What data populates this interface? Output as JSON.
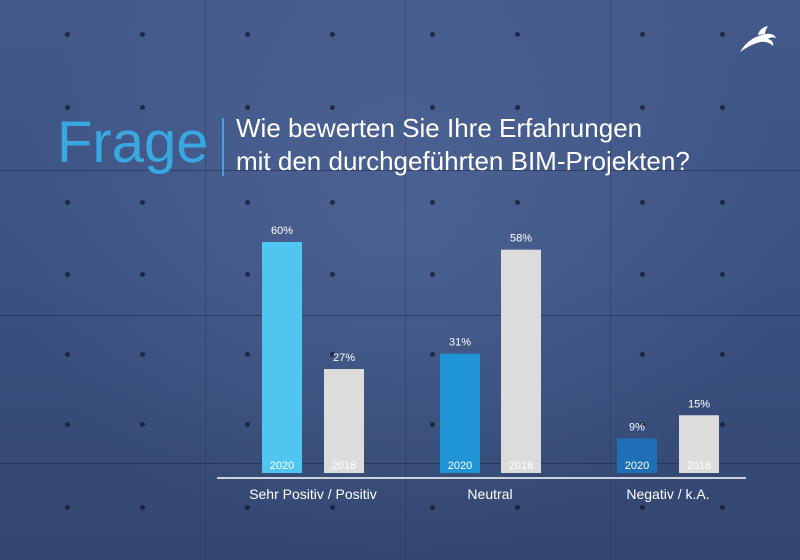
{
  "title": {
    "word": "Frage",
    "question_line1": "Wie bewerten Sie Ihre Erfahrungen",
    "question_line2": "mit den durchgeführten BIM-Projekten?"
  },
  "logo": {
    "icon": "dolphin-icon",
    "color": "#ffffff"
  },
  "chart_data": {
    "type": "bar",
    "categories": [
      "Sehr Positiv / Positiv",
      "Neutral",
      "Negativ / k.A."
    ],
    "series": [
      {
        "name": "2020",
        "values": [
          60,
          31,
          9
        ],
        "colors": [
          "#4ec6f0",
          "#1f95d6",
          "#1e6fb5"
        ]
      },
      {
        "name": "2018",
        "values": [
          27,
          58,
          15
        ],
        "colors": [
          "#dcdcdc",
          "#dcdcdc",
          "#dcdcdc"
        ]
      }
    ],
    "value_labels": [
      [
        "60%",
        "31%",
        "9%"
      ],
      [
        "27%",
        "58%",
        "15%"
      ]
    ],
    "unit": "%",
    "ylim": [
      0,
      60
    ],
    "grid": false,
    "legend": "none"
  }
}
